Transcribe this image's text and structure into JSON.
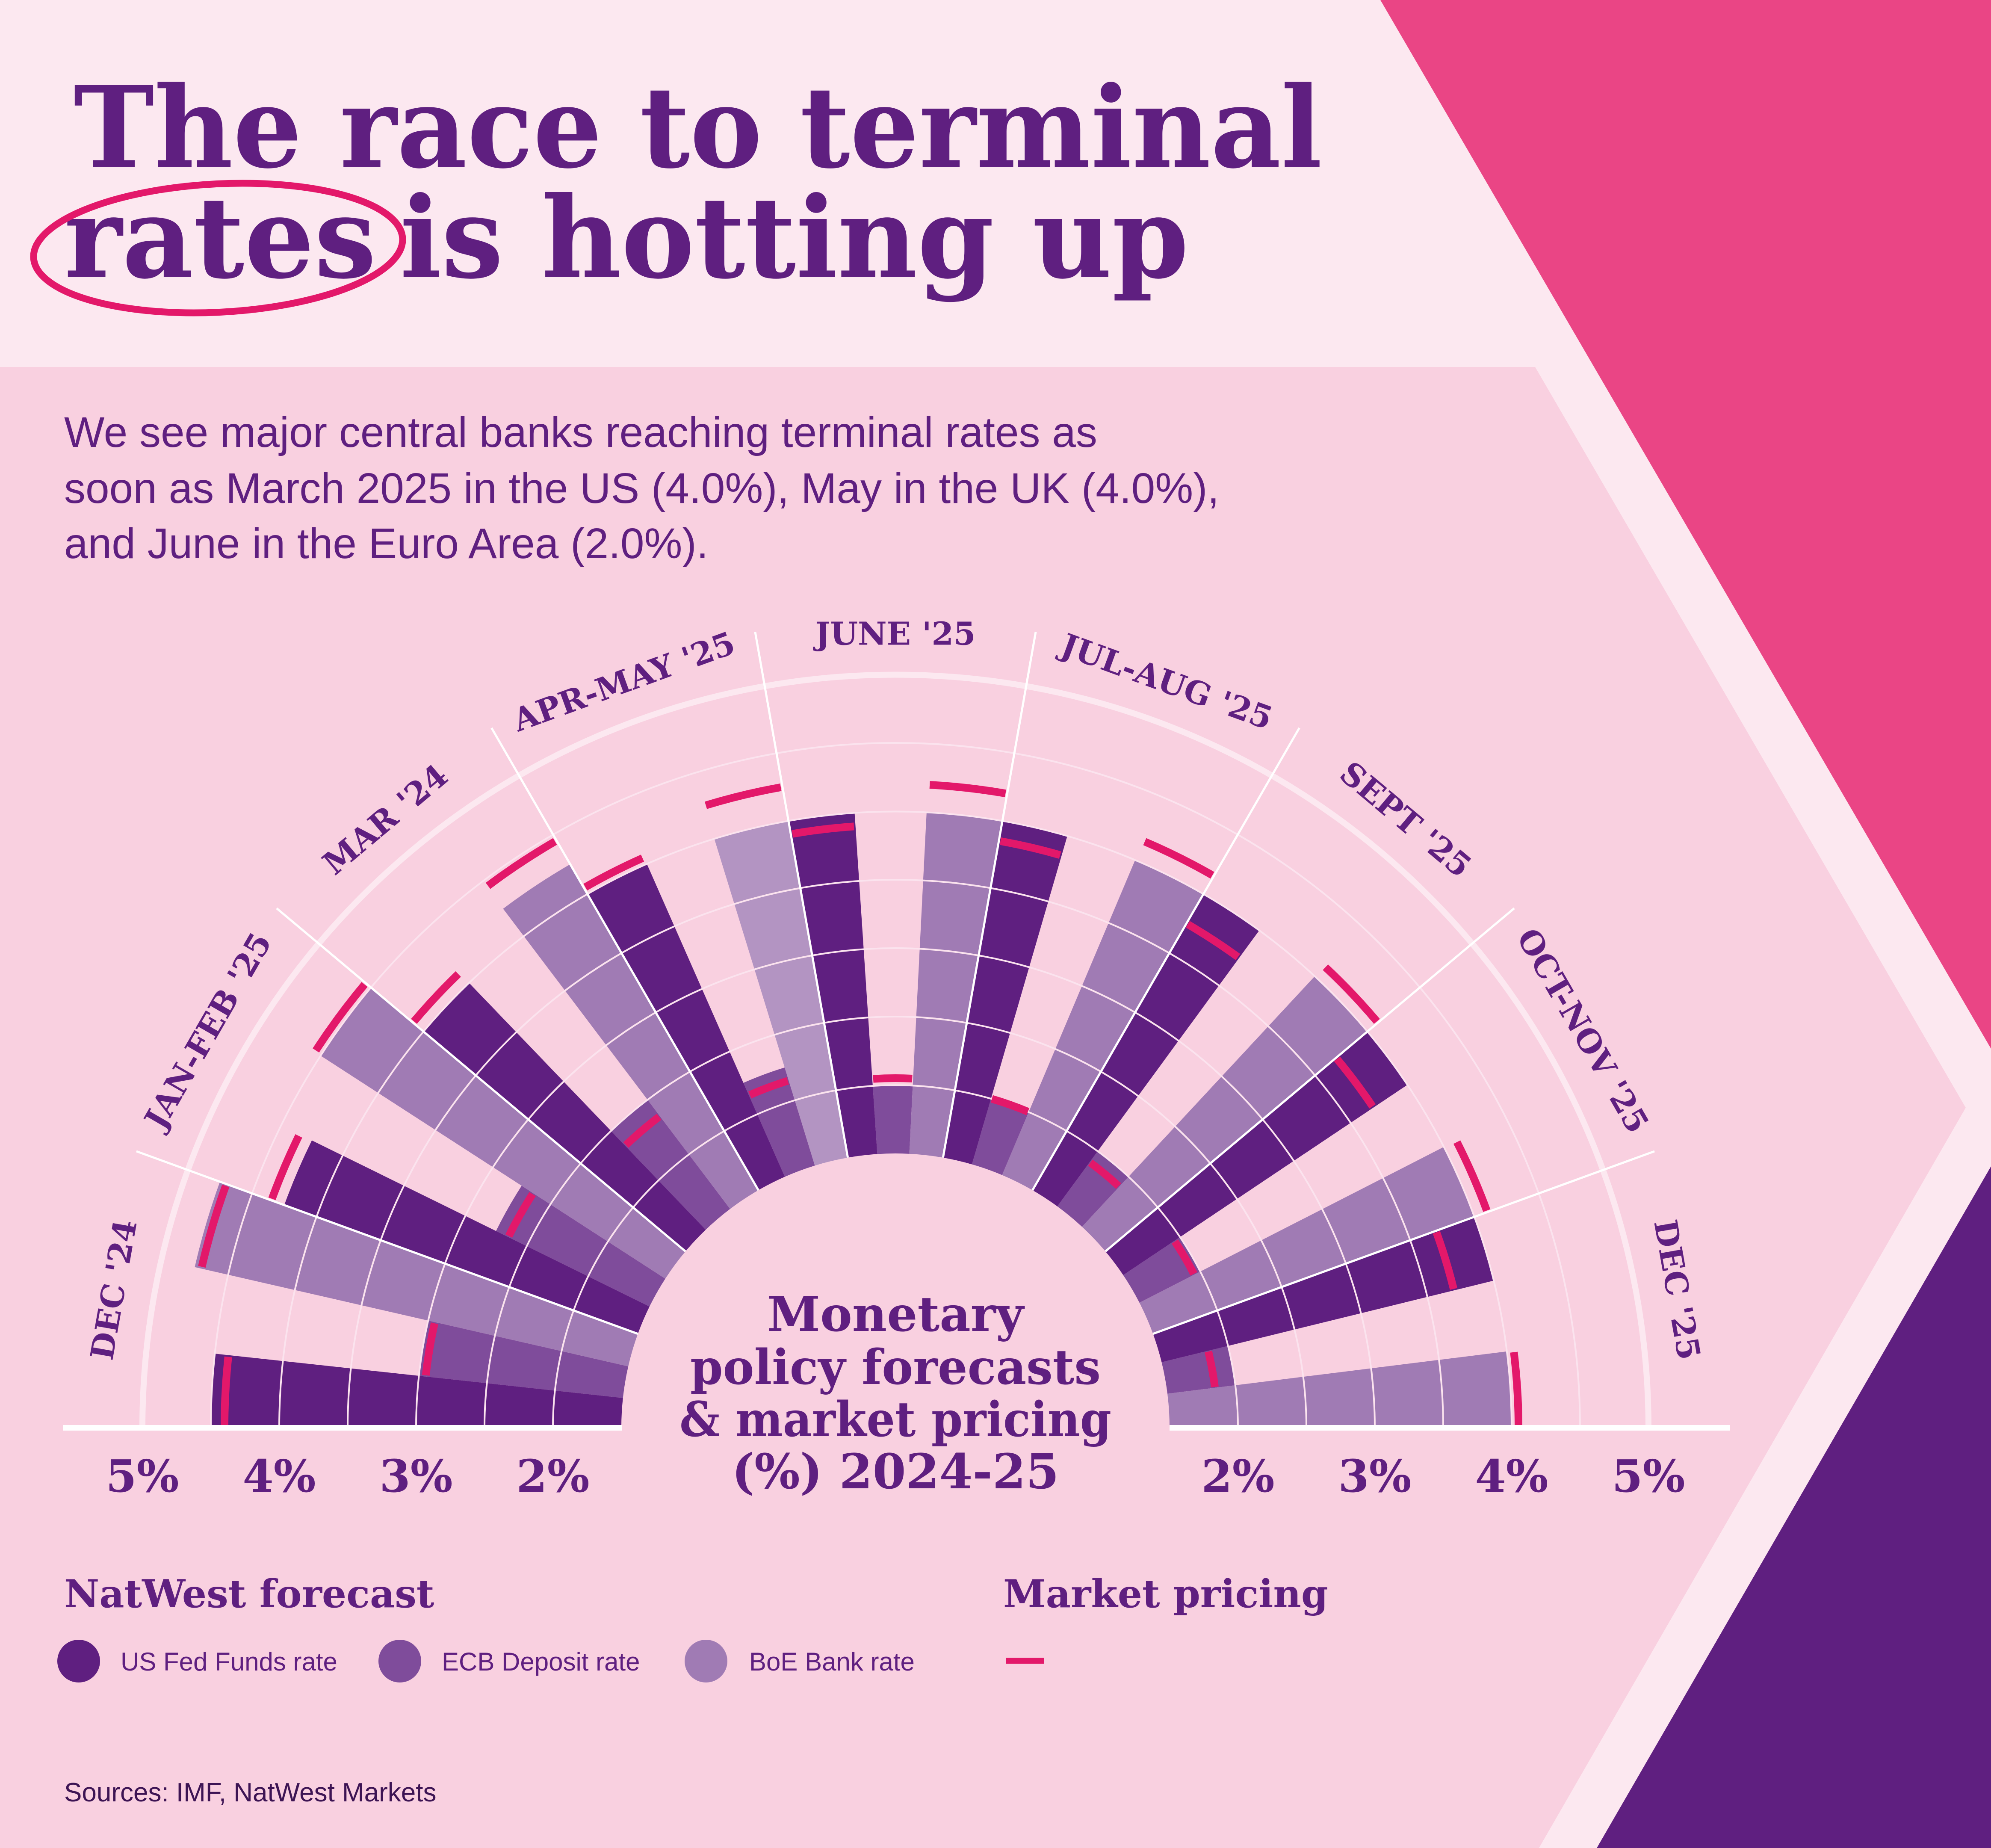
{
  "header": {
    "title_line1": "The race to terminal",
    "title_line2_circled": "rates",
    "title_line2_rest": "is hotting up"
  },
  "subtitle": {
    "lines": [
      "We see major central banks reaching terminal rates as",
      "soon as March 2025 in the US (4.0%), May in the UK (4.0%),",
      "and June in the Euro Area (2.0%)."
    ]
  },
  "colors": {
    "us": "#5f1f80",
    "ecb": "#7f4c9b",
    "boe": "#a07bb4",
    "boe_alt": "#b394c2",
    "market": "#e3186a",
    "accent_pink": "#ea4585",
    "accent_purple": "#5f1f80",
    "panel": "#f9d0e0",
    "header_bg": "#fce8f0"
  },
  "chart_data": {
    "type": "radial-bar",
    "title": "Monetary policy forecasts & market pricing (%) 2024-25",
    "title_lines": [
      "Monetary",
      "policy forecasts",
      "& market pricing",
      "(%) 2024-25"
    ],
    "categories": [
      "DEC '24",
      "JAN-FEB '25",
      "MAR '24",
      "APR-MAY '25",
      "JUNE '25",
      "JUL-AUG '25",
      "SEPT '25",
      "OCT-NOV '25",
      "DEC '25"
    ],
    "series": [
      {
        "name": "US Fed Funds rate",
        "key": "us",
        "values": [
          4.5,
          4.25,
          4.0,
          4.0,
          4.0,
          4.0,
          4.0,
          4.0,
          4.0
        ]
      },
      {
        "name": "ECB Deposit rate",
        "key": "ecb",
        "values": [
          3.0,
          2.75,
          2.5,
          2.25,
          2.0,
          2.0,
          2.0,
          2.0,
          2.0
        ]
      },
      {
        "name": "BoE Bank rate",
        "key": "boe",
        "values": [
          4.75,
          4.5,
          4.25,
          4.0,
          4.0,
          4.0,
          4.0,
          4.0,
          4.0
        ]
      }
    ],
    "market_pricing": {
      "name": "Market pricing",
      "us": [
        4.4,
        4.35,
        4.1,
        4.05,
        3.9,
        3.85,
        3.75,
        3.7,
        3.7
      ],
      "ecb": [
        2.95,
        2.65,
        2.35,
        2.15,
        2.05,
        2.0,
        1.9,
        1.95,
        1.85
      ],
      "boe": [
        4.7,
        4.55,
        4.45,
        4.25,
        4.2,
        4.15,
        4.1,
        4.1,
        4.05
      ]
    },
    "radial_axis": {
      "min": 1.5,
      "max": 5.0,
      "grid_step": 0.5,
      "grid": true
    },
    "axis_ticks_left": [
      "5%",
      "4%",
      "3%",
      "2%"
    ],
    "axis_ticks_right": [
      "2%",
      "3%",
      "4%",
      "5%"
    ],
    "axis_tick_values_left": [
      5,
      4,
      3,
      2
    ],
    "axis_tick_values_right": [
      2,
      3,
      4,
      5
    ],
    "legend_placement": "bottom"
  },
  "legend": {
    "forecast_heading": "NatWest forecast",
    "market_heading": "Market pricing",
    "items": [
      {
        "label": "US Fed Funds rate",
        "icon": "circle-dark-purple"
      },
      {
        "label": "ECB Deposit rate",
        "icon": "circle-medium-purple"
      },
      {
        "label": "BoE Bank rate",
        "icon": "circle-light-purple"
      }
    ],
    "market_icon": "pink-dash"
  },
  "footer": {
    "sources": "Sources: IMF, NatWest Markets"
  }
}
